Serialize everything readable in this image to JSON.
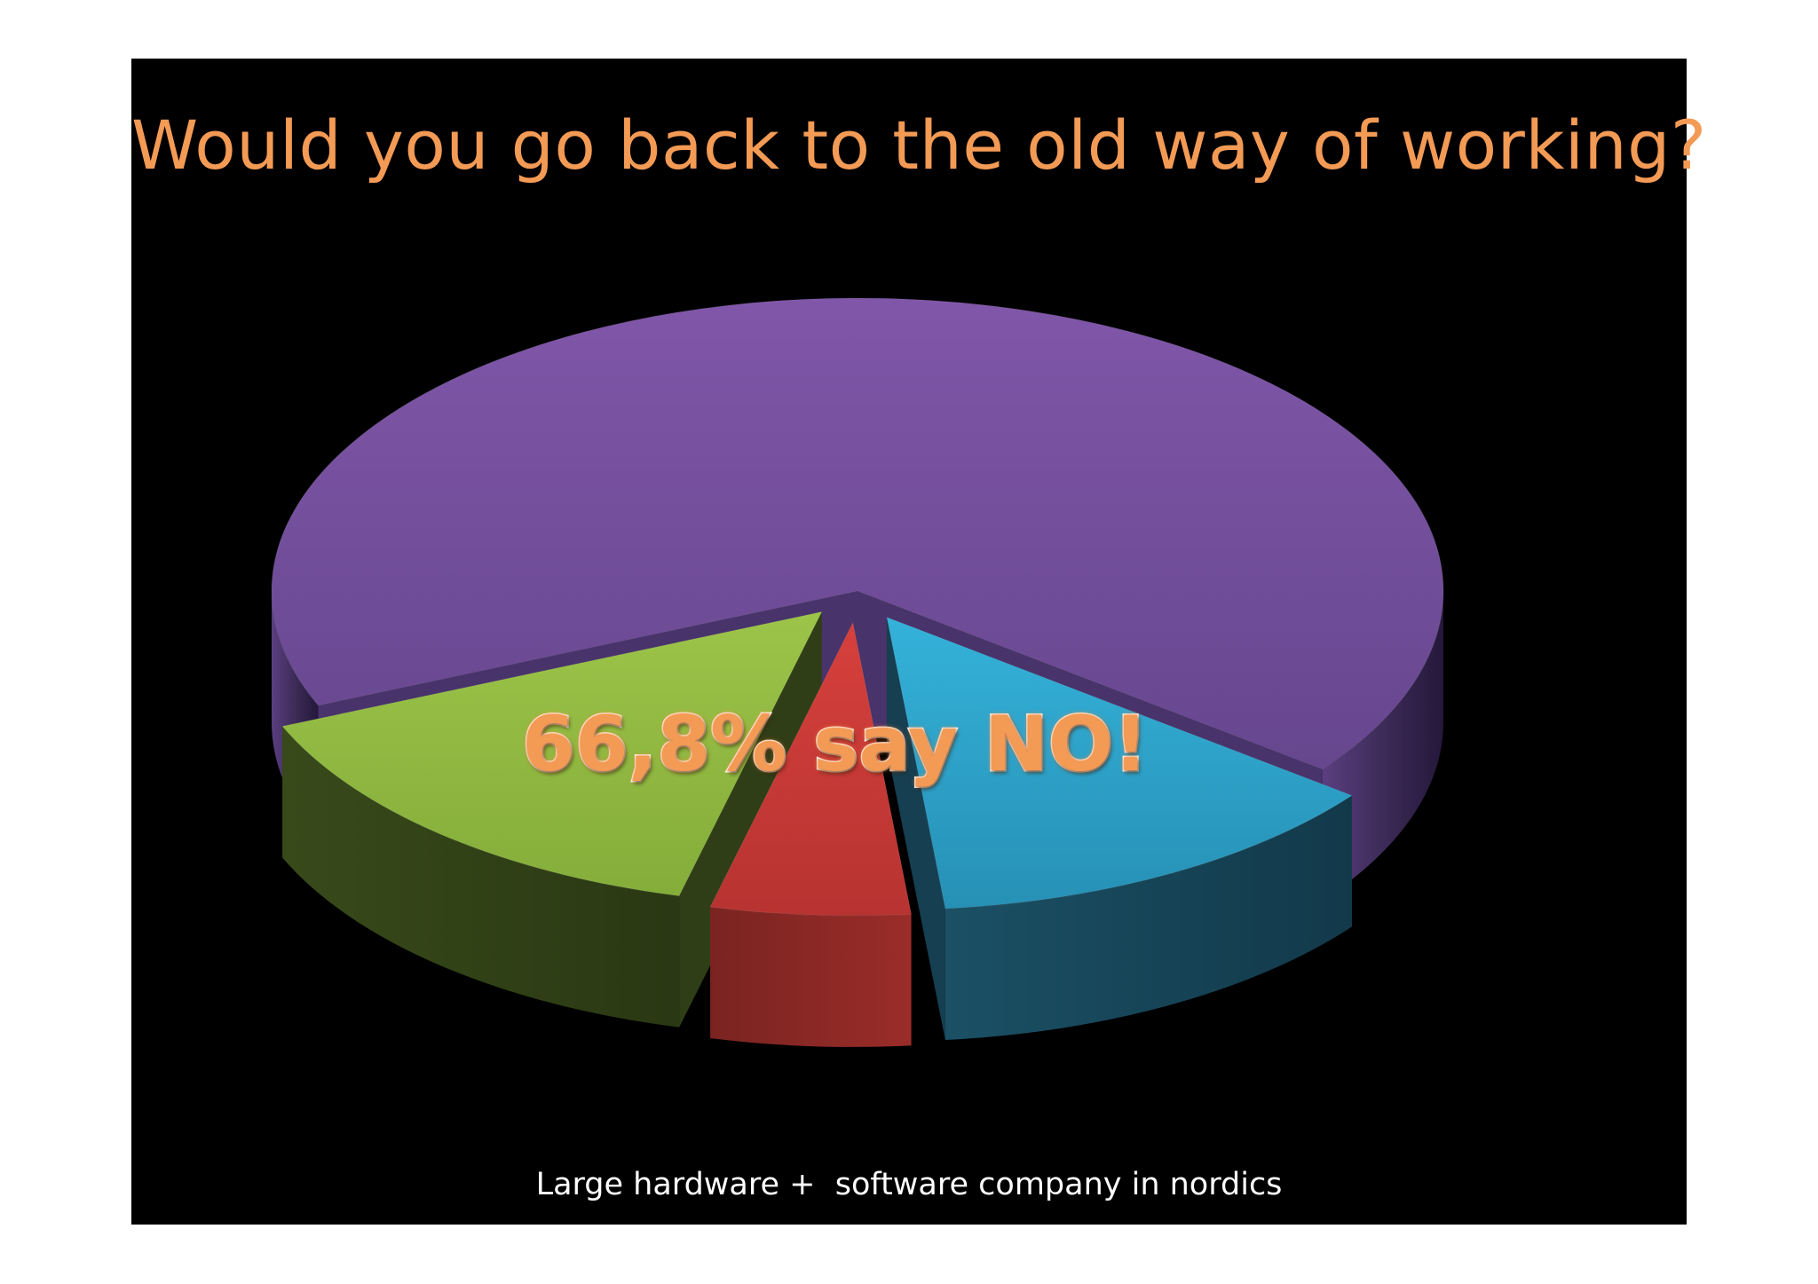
{
  "chart_data": {
    "type": "pie",
    "title": "Would you go back to the old way of working?",
    "categories": [
      "",
      "",
      "",
      ""
    ],
    "values": [
      66.8,
      13.0,
      5.5,
      14.7
    ],
    "slice_colors": [
      "#7a52a8",
      "#2fa8cf",
      "#cf3c3a",
      "#93bb44"
    ],
    "annotations": [
      "66,8% say NO!"
    ],
    "legend": "none"
  },
  "footer": {
    "text": "Large hardware +  software company in nordics"
  }
}
